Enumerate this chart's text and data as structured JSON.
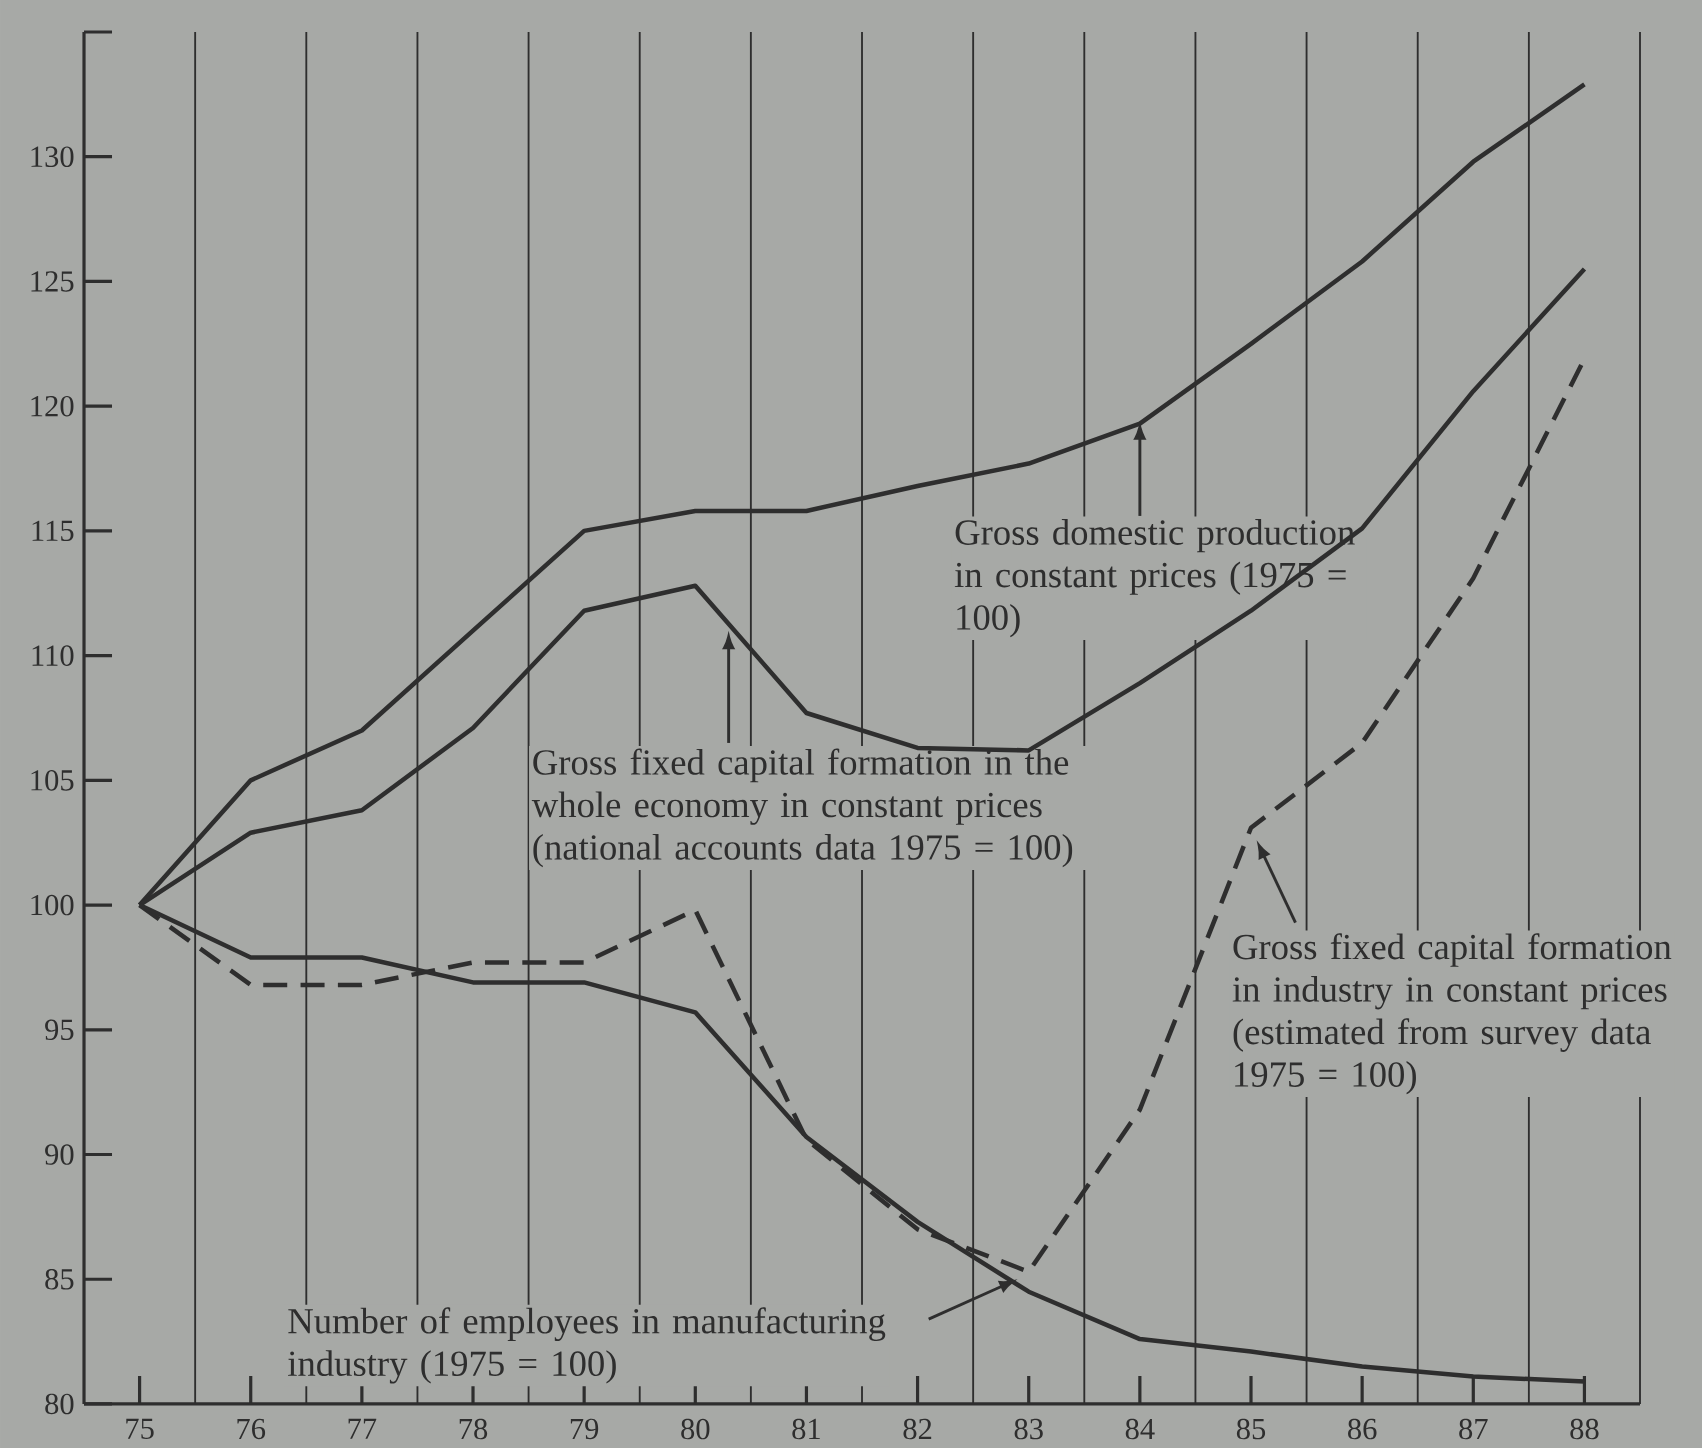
{
  "chart_data": {
    "type": "line",
    "x": [
      75,
      76,
      77,
      78,
      79,
      80,
      81,
      82,
      83,
      84,
      85,
      86,
      87,
      88
    ],
    "series": [
      {
        "color": "#2e2e2e",
        "line_style": "solid",
        "values": [
          100,
          105,
          107,
          111,
          115,
          115.8,
          115.8,
          116.8,
          117.7,
          119.3,
          122.5,
          125.8,
          129.8,
          132.9
        ]
      },
      {
        "color": "#2e2e2e",
        "line_style": "solid",
        "values": [
          100,
          102.9,
          103.8,
          107.1,
          111.8,
          112.8,
          107.7,
          106.3,
          106.2,
          108.9,
          111.8,
          115.1,
          120.6,
          125.5
        ]
      },
      {
        "color": "#2e2e2e",
        "line_style": "dashed",
        "values": [
          100,
          96.8,
          96.8,
          97.7,
          97.7,
          99.8,
          90.6,
          87,
          85.3,
          91.8,
          103.1,
          106.5,
          113.1,
          121.9
        ]
      },
      {
        "color": "#2e2e2e",
        "line_style": "solid",
        "values": [
          100,
          97.9,
          97.9,
          96.9,
          96.9,
          95.7,
          90.7,
          87.3,
          84.5,
          82.6,
          82.1,
          81.5,
          81.1,
          80.9
        ]
      }
    ],
    "xlim": [
      74.5,
      88.5
    ],
    "ylim": [
      80,
      135
    ],
    "xticks": [
      75,
      76,
      77,
      78,
      79,
      80,
      81,
      82,
      83,
      84,
      85,
      86,
      87,
      88
    ],
    "yticks": [
      80,
      85,
      90,
      95,
      100,
      105,
      110,
      115,
      120,
      125,
      130,
      {
        "value": 135,
        "label": null
      }
    ],
    "grid": "x",
    "marker": "none",
    "annotations": [
      {
        "text": "Gross domestic production in constant prices (1975 = 100)",
        "x": 84,
        "y": 119.4
      },
      {
        "text": "Gross fixed capital formation in the whole economy in constant prices (national accounts data 1975 = 100)",
        "x": 80.3,
        "y": 111.0
      },
      {
        "text": "Gross fixed capital formation in industry in constant prices (estimated from survey data 1975 = 100)",
        "x": 85.05,
        "y": 102.6
      },
      {
        "text": "Number of employees in manufacturing industry (1975 = 100)",
        "x": 82.9,
        "y": 85.0
      }
    ]
  }
}
